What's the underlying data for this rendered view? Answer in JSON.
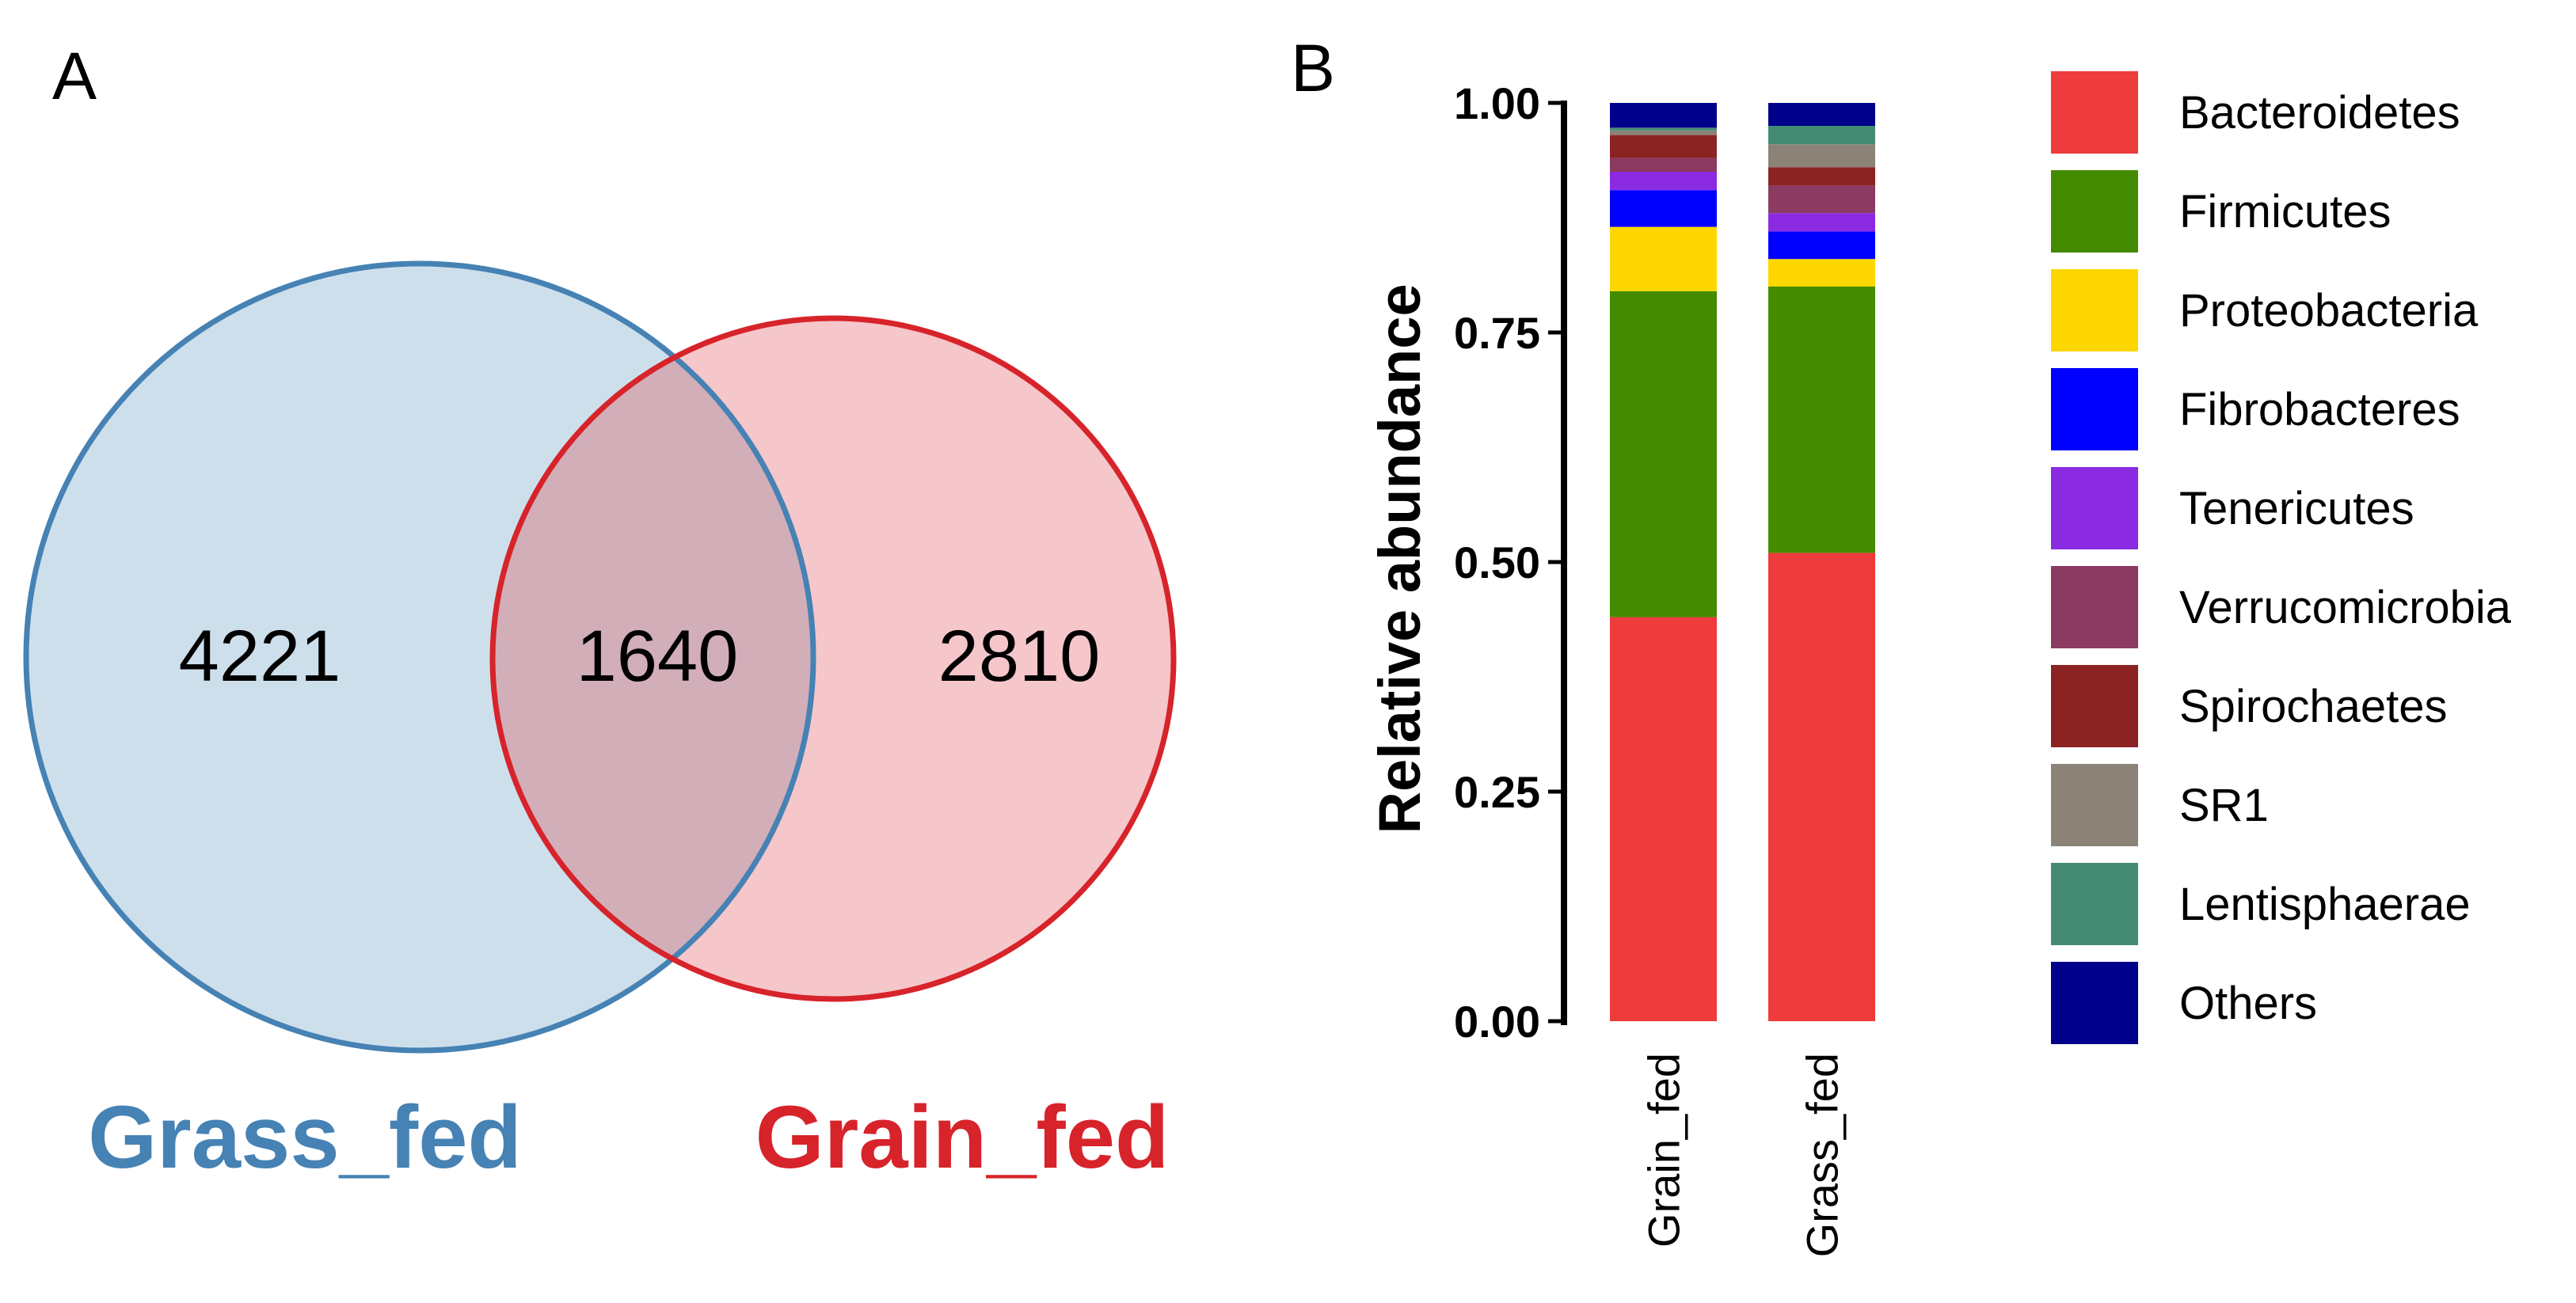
{
  "panel_a_label": "A",
  "panel_b_label": "B",
  "venn": {
    "sets": [
      {
        "name": "Grass_fed",
        "unique": "4221",
        "color": "#4682B4",
        "fill": "#CEDFEC"
      },
      {
        "name": "Grain_fed",
        "unique": "2810",
        "color": "#D7232A",
        "fill": "#F5C6CA"
      }
    ],
    "shared": "1640",
    "overlap_fill": "#D2AEB9"
  },
  "chart_data": {
    "type": "bar",
    "stacked": true,
    "categories": [
      "Grain_fed",
      "Grass_fed"
    ],
    "ylabel": "Relative abundance",
    "xlabel": "",
    "ylim": [
      0,
      1
    ],
    "yticks": [
      "0.00",
      "0.25",
      "0.50",
      "0.75",
      "1.00"
    ],
    "legend_position": "right",
    "series": [
      {
        "name": "Bacteroidetes",
        "color": "#EE3B3B",
        "values": [
          0.44,
          0.51
        ]
      },
      {
        "name": "Firmicutes",
        "color": "#458B00",
        "values": [
          0.355,
          0.29
        ]
      },
      {
        "name": "Proteobacteria",
        "color": "#FFD700",
        "values": [
          0.07,
          0.03
        ]
      },
      {
        "name": "Fibrobacteres",
        "color": "#0000FF",
        "values": [
          0.04,
          0.03
        ]
      },
      {
        "name": "Tenericutes",
        "color": "#8A2BE2",
        "values": [
          0.02,
          0.02
        ]
      },
      {
        "name": "Verrucomicrobia",
        "color": "#8B3A62",
        "values": [
          0.015,
          0.03
        ]
      },
      {
        "name": "Spirochaetes",
        "color": "#8B2323",
        "values": [
          0.025,
          0.02
        ]
      },
      {
        "name": "SR1",
        "color": "#8B8378",
        "values": [
          0.005,
          0.025
        ]
      },
      {
        "name": "Lentisphaerae",
        "color": "#458B74",
        "values": [
          0.003,
          0.02
        ]
      },
      {
        "name": "Others",
        "color": "#00008B",
        "values": [
          0.027,
          0.025
        ]
      }
    ]
  }
}
